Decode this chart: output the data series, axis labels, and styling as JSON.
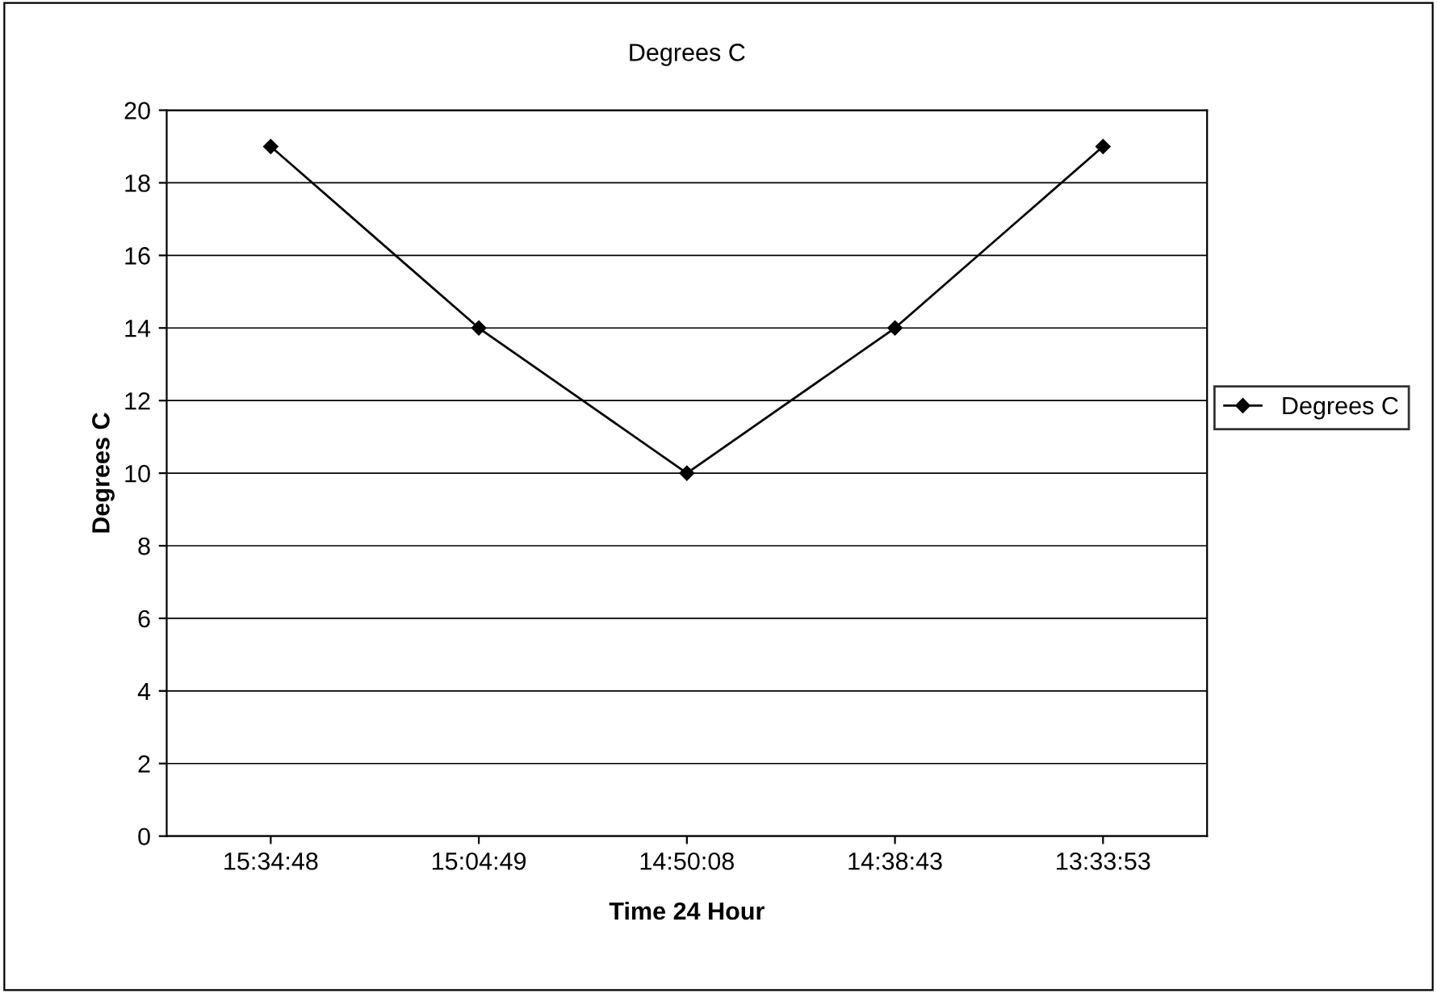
{
  "chart_data": {
    "type": "line",
    "title": "Degrees C",
    "xlabel": "Time 24 Hour",
    "ylabel": "Degrees C",
    "categories": [
      "15:34:48",
      "15:04:49",
      "14:50:08",
      "14:38:43",
      "13:33:53"
    ],
    "series": [
      {
        "name": "Degrees C",
        "color": "#000000",
        "values": [
          19,
          14,
          10,
          14,
          19
        ]
      }
    ],
    "ylim": [
      0,
      20
    ],
    "yticks": [
      0,
      2,
      4,
      6,
      8,
      10,
      12,
      14,
      16,
      18,
      20
    ],
    "grid": "y",
    "legend": "right",
    "marker": "diamond",
    "line_style": "solid"
  }
}
